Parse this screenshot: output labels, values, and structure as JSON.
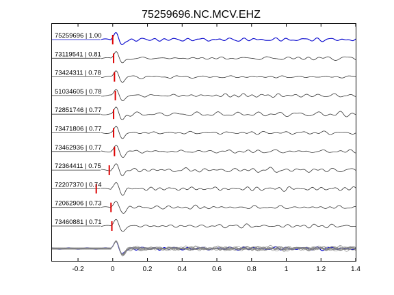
{
  "chart_data": {
    "type": "line",
    "title": "75259696.NC.MCV.EHZ",
    "xlabel": "",
    "ylabel": "",
    "xlim": [
      -0.35,
      1.4
    ],
    "x_ticks": [
      -0.2,
      0,
      0.2,
      0.4,
      0.6,
      0.8,
      1,
      1.2,
      1.4
    ],
    "x_tick_labels": [
      "-0.2",
      "0",
      "0.2",
      "0.4",
      "0.6",
      "0.8",
      "1",
      "1.2",
      "1.4"
    ],
    "grid": false,
    "pick_color": "#dd0000",
    "master_color": "#0000cc",
    "trace_color": "#333333",
    "stack_color": "#808080",
    "series": [
      {
        "label": "75259696 | 1.00",
        "pick_time": 0.0,
        "master": true
      },
      {
        "label": "73119541 | 0.81",
        "pick_time": 0.005
      },
      {
        "label": "73424311 | 0.78",
        "pick_time": 0.01
      },
      {
        "label": "51034605 | 0.78",
        "pick_time": 0.015
      },
      {
        "label": "72851746 | 0.77",
        "pick_time": 0.005
      },
      {
        "label": "73471806 | 0.77",
        "pick_time": 0.005
      },
      {
        "label": "73462936 | 0.77",
        "pick_time": 0.01
      },
      {
        "label": "72364411 | 0.75",
        "pick_time": -0.02
      },
      {
        "label": "72207370 | 0.74",
        "pick_time": -0.095
      },
      {
        "label": "72062906 | 0.73",
        "pick_time": -0.01
      },
      {
        "label": "73460881 | 0.71",
        "pick_time": -0.005
      }
    ]
  }
}
